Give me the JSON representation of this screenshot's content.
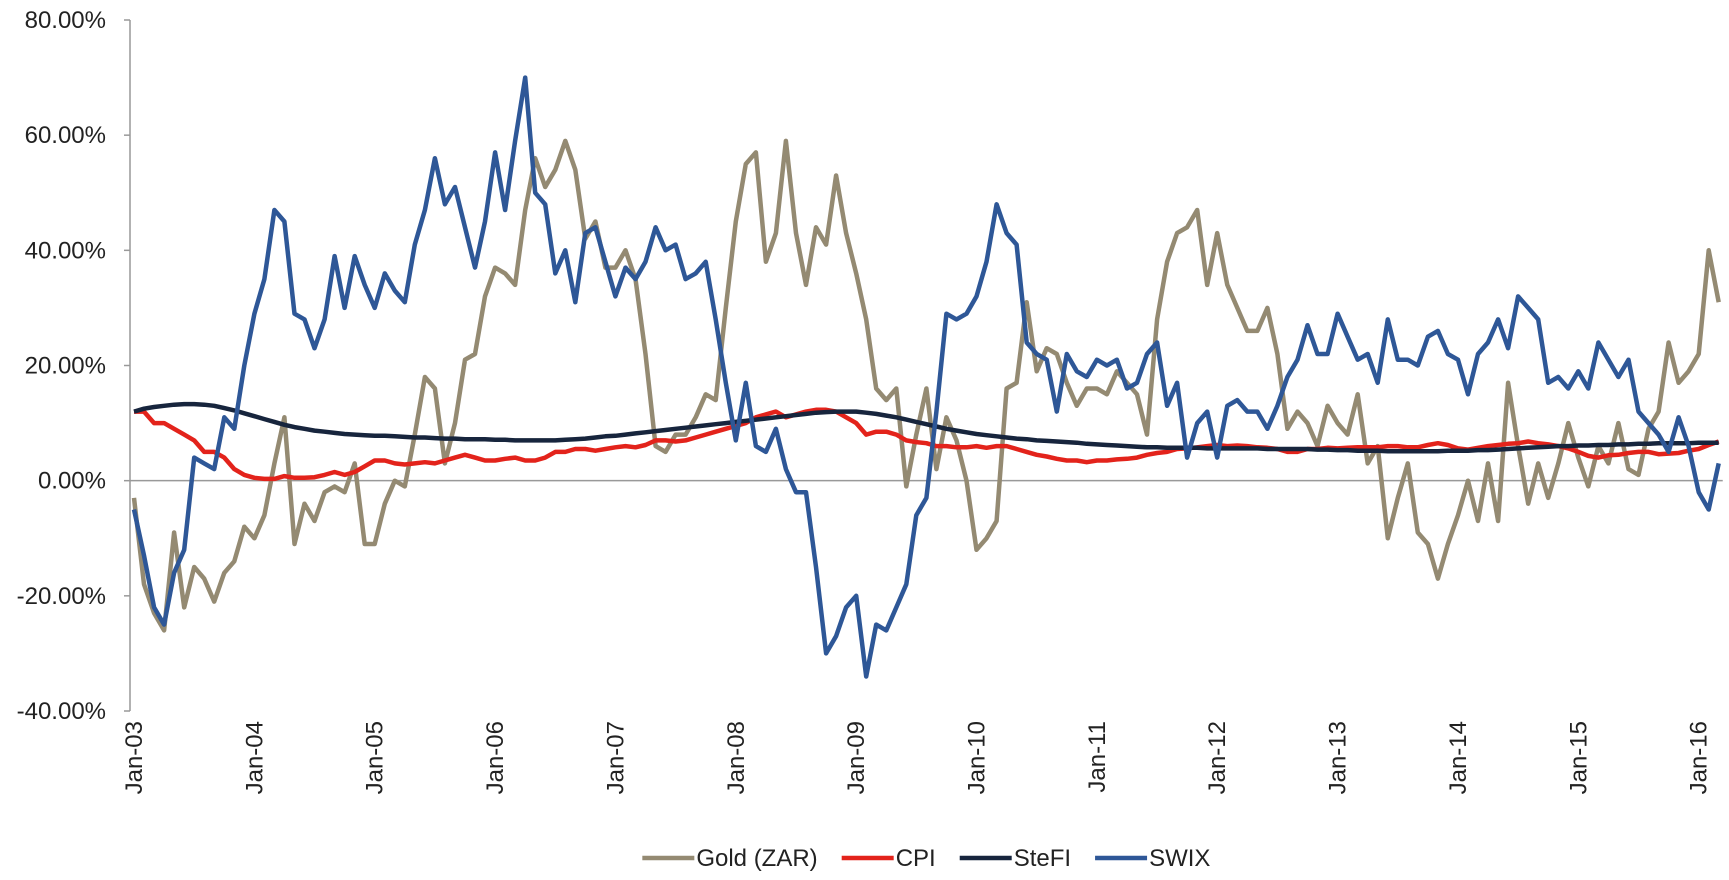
{
  "chart_data": {
    "type": "line",
    "categories": [
      "Jan-03",
      null,
      null,
      null,
      null,
      null,
      null,
      null,
      null,
      null,
      null,
      null,
      "Jan-04",
      null,
      null,
      null,
      null,
      null,
      null,
      null,
      null,
      null,
      null,
      null,
      "Jan-05",
      null,
      null,
      null,
      null,
      null,
      null,
      null,
      null,
      null,
      null,
      null,
      "Jan-06",
      null,
      null,
      null,
      null,
      null,
      null,
      null,
      null,
      null,
      null,
      null,
      "Jan-07",
      null,
      null,
      null,
      null,
      null,
      null,
      null,
      null,
      null,
      null,
      null,
      "Jan-08",
      null,
      null,
      null,
      null,
      null,
      null,
      null,
      null,
      null,
      null,
      null,
      "Jan-09",
      null,
      null,
      null,
      null,
      null,
      null,
      null,
      null,
      null,
      null,
      null,
      "Jan-10",
      null,
      null,
      null,
      null,
      null,
      null,
      null,
      null,
      null,
      null,
      null,
      "Jan-11",
      null,
      null,
      null,
      null,
      null,
      null,
      null,
      null,
      null,
      null,
      null,
      "Jan-12",
      null,
      null,
      null,
      null,
      null,
      null,
      null,
      null,
      null,
      null,
      null,
      "Jan-13",
      null,
      null,
      null,
      null,
      null,
      null,
      null,
      null,
      null,
      null,
      null,
      "Jan-14",
      null,
      null,
      null,
      null,
      null,
      null,
      null,
      null,
      null,
      null,
      null,
      "Jan-15",
      null,
      null,
      null,
      null,
      null,
      null,
      null,
      null,
      null,
      null,
      null,
      "Jan-16",
      null,
      null
    ],
    "series": [
      {
        "name": "Gold (ZAR)",
        "color": "#948a72",
        "values": [
          -3,
          -18,
          -23,
          -26,
          -9,
          -22,
          -15,
          -17,
          -21,
          -16,
          -14,
          -8,
          -10,
          -6,
          3,
          11,
          -11,
          -4,
          -7,
          -2,
          -1,
          -2,
          3,
          -11,
          -11,
          -4,
          0,
          -1,
          8,
          18,
          16,
          3,
          10,
          21,
          22,
          32,
          37,
          36,
          34,
          47,
          56,
          51,
          54,
          59,
          54,
          42,
          45,
          37,
          37,
          40,
          35,
          22,
          6,
          5,
          8,
          8,
          11,
          15,
          14,
          30,
          45,
          55,
          57,
          38,
          43,
          59,
          43,
          34,
          44,
          41,
          53,
          43,
          36,
          28,
          16,
          14,
          16,
          -1,
          8,
          16,
          2,
          11,
          7,
          0,
          -12,
          -10,
          -7,
          16,
          17,
          31,
          19,
          23,
          22,
          17,
          13,
          16,
          16,
          15,
          19,
          17,
          15,
          8,
          28,
          38,
          43,
          44,
          47,
          34,
          43,
          34,
          30,
          26,
          26,
          30,
          22,
          9,
          12,
          10,
          6,
          13,
          10,
          8,
          15,
          3,
          6,
          -10,
          -3,
          3,
          -9,
          -11,
          -17,
          -11,
          -6,
          0,
          -7,
          3,
          -7,
          17,
          6,
          -4,
          3,
          -3,
          3,
          10,
          4,
          -1,
          6,
          3,
          10,
          2,
          1,
          9,
          12,
          24,
          17,
          19,
          22,
          40,
          31
        ]
      },
      {
        "name": "CPI",
        "color": "#e3231b",
        "values": [
          12,
          12,
          10,
          10,
          9,
          8,
          7,
          5,
          5,
          4,
          2,
          1,
          0.5,
          0.3,
          0.3,
          0.8,
          0.5,
          0.5,
          0.6,
          1,
          1.5,
          1,
          1.5,
          2.5,
          3.5,
          3.5,
          3,
          2.8,
          3,
          3.2,
          3,
          3.5,
          4,
          4.5,
          4,
          3.5,
          3.5,
          3.8,
          4,
          3.5,
          3.5,
          4,
          5,
          5,
          5.5,
          5.5,
          5.2,
          5.5,
          5.8,
          6,
          5.8,
          6.2,
          7,
          7,
          6.8,
          7,
          7.5,
          8,
          8.5,
          9,
          9.5,
          10,
          11,
          11.5,
          12,
          11,
          11.5,
          12,
          12.3,
          12.3,
          12,
          11,
          10,
          8,
          8.5,
          8.5,
          8,
          7,
          6.7,
          6.5,
          6,
          6,
          5.8,
          5.8,
          6,
          5.7,
          6,
          6,
          5.5,
          5,
          4.5,
          4.2,
          3.8,
          3.5,
          3.5,
          3.2,
          3.5,
          3.5,
          3.7,
          3.8,
          4,
          4.5,
          4.8,
          5,
          5.5,
          5.6,
          5.8,
          6,
          6.2,
          6,
          6.1,
          6,
          5.8,
          5.7,
          5.5,
          5,
          5,
          5.5,
          5.5,
          5.7,
          5.6,
          5.7,
          5.8,
          5.8,
          5.8,
          6,
          6,
          5.8,
          5.8,
          6.2,
          6.5,
          6.2,
          5.6,
          5.4,
          5.7,
          6,
          6.2,
          6.4,
          6.5,
          6.8,
          6.5,
          6.3,
          6,
          5.6,
          5,
          4.3,
          4,
          4.4,
          4.5,
          4.8,
          5,
          5,
          4.6,
          4.7,
          4.8,
          5.2,
          5.5,
          6.2,
          6.8
        ]
      },
      {
        "name": "SteFI",
        "color": "#17253d",
        "values": [
          12,
          12.5,
          12.8,
          13,
          13.2,
          13.3,
          13.3,
          13.2,
          13,
          12.6,
          12.2,
          11.7,
          11.2,
          10.7,
          10.2,
          9.7,
          9.3,
          9,
          8.7,
          8.5,
          8.3,
          8.1,
          8,
          7.9,
          7.8,
          7.8,
          7.7,
          7.6,
          7.5,
          7.5,
          7.4,
          7.3,
          7.3,
          7.2,
          7.2,
          7.2,
          7.1,
          7.1,
          7,
          7,
          7,
          7,
          7,
          7.1,
          7.2,
          7.3,
          7.5,
          7.7,
          7.8,
          8,
          8.2,
          8.4,
          8.6,
          8.8,
          9,
          9.2,
          9.4,
          9.6,
          9.8,
          10,
          10.2,
          10.4,
          10.6,
          10.8,
          11,
          11.2,
          11.4,
          11.6,
          11.8,
          11.9,
          12,
          12,
          12,
          11.8,
          11.6,
          11.3,
          11,
          10.6,
          10.2,
          9.8,
          9.4,
          9,
          8.7,
          8.4,
          8.1,
          7.9,
          7.7,
          7.5,
          7.3,
          7.2,
          7,
          6.9,
          6.8,
          6.7,
          6.6,
          6.4,
          6.3,
          6.2,
          6.1,
          6,
          5.9,
          5.8,
          5.8,
          5.7,
          5.7,
          5.7,
          5.7,
          5.6,
          5.6,
          5.6,
          5.6,
          5.6,
          5.6,
          5.5,
          5.5,
          5.5,
          5.5,
          5.5,
          5.4,
          5.4,
          5.3,
          5.3,
          5.2,
          5.2,
          5.2,
          5.1,
          5.1,
          5.1,
          5.1,
          5.1,
          5.1,
          5.2,
          5.2,
          5.2,
          5.3,
          5.3,
          5.4,
          5.5,
          5.6,
          5.7,
          5.8,
          5.9,
          6,
          6,
          6.1,
          6.1,
          6.2,
          6.2,
          6.3,
          6.3,
          6.4,
          6.4,
          6.5,
          6.5,
          6.5,
          6.5,
          6.6,
          6.6,
          6.6
        ]
      },
      {
        "name": "SWIX",
        "color": "#2e5797",
        "values": [
          -5,
          -13,
          -22,
          -25,
          -16,
          -12,
          4,
          3,
          2,
          11,
          9,
          20,
          29,
          35,
          47,
          45,
          29,
          28,
          23,
          28,
          39,
          30,
          39,
          34,
          30,
          36,
          33,
          31,
          41,
          47,
          56,
          48,
          51,
          44,
          37,
          45,
          57,
          47,
          59,
          70,
          50,
          48,
          36,
          40,
          31,
          43,
          44,
          38,
          32,
          37,
          35,
          38,
          44,
          40,
          41,
          35,
          36,
          38,
          28,
          17,
          7,
          17,
          6,
          5,
          9,
          2,
          -2,
          -2,
          -15,
          -30,
          -27,
          -22,
          -20,
          -34,
          -25,
          -26,
          -22,
          -18,
          -6,
          -3,
          12,
          29,
          28,
          29,
          32,
          38,
          48,
          43,
          41,
          24,
          22,
          21,
          12,
          22,
          19,
          18,
          21,
          20,
          21,
          16,
          17,
          22,
          24,
          13,
          17,
          4,
          10,
          12,
          4,
          13,
          14,
          12,
          12,
          9,
          13,
          18,
          21,
          27,
          22,
          22,
          29,
          25,
          21,
          22,
          17,
          28,
          21,
          21,
          20,
          25,
          26,
          22,
          21,
          15,
          22,
          24,
          28,
          23,
          32,
          30,
          28,
          17,
          18,
          16,
          19,
          16,
          24,
          21,
          18,
          21,
          12,
          10,
          8,
          5,
          11,
          6,
          -2,
          -5,
          3
        ]
      }
    ],
    "ylim": [
      -40,
      80
    ],
    "yticks": [
      {
        "value": -40,
        "label": "-40.00%"
      },
      {
        "value": -20,
        "label": "-20.00%"
      },
      {
        "value": 0,
        "label": "0.00%"
      },
      {
        "value": 20,
        "label": "20.00%"
      },
      {
        "value": 40,
        "label": "40.00%"
      },
      {
        "value": 60,
        "label": "60.00%"
      },
      {
        "value": 80,
        "label": "80.00%"
      }
    ],
    "grid": false,
    "legend": "bottom"
  }
}
